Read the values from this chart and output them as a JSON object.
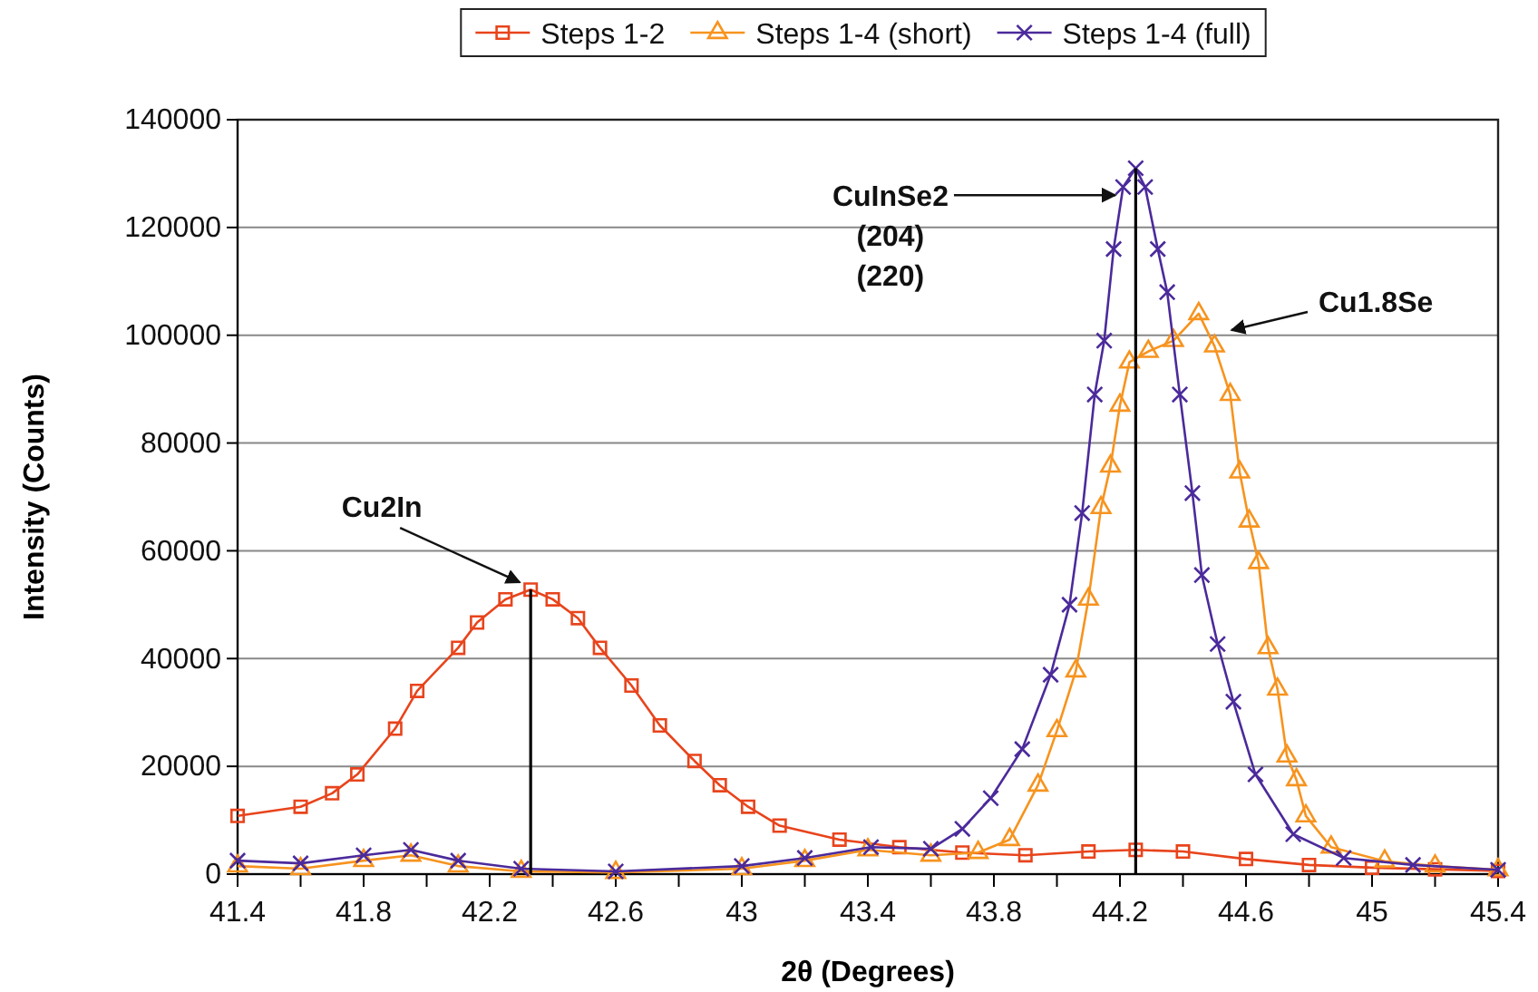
{
  "chart_data": {
    "type": "line",
    "xlabel": "2θ (Degrees)",
    "ylabel": "Intensity (Counts)",
    "xlim": [
      41.4,
      45.4
    ],
    "ylim": [
      0,
      140000
    ],
    "xticks": [
      41.4,
      {
        "value": 41.6,
        "label": null
      },
      41.8,
      {
        "value": 42.0,
        "label": null
      },
      42.2,
      {
        "value": 42.4,
        "label": null
      },
      42.6,
      {
        "value": 42.8,
        "label": null
      },
      43,
      {
        "value": 43.2,
        "label": null
      },
      43.4,
      {
        "value": 43.6,
        "label": null
      },
      43.8,
      {
        "value": 44.0,
        "label": null
      },
      44.2,
      {
        "value": 44.4,
        "label": null
      },
      44.6,
      {
        "value": 44.8,
        "label": null
      },
      45,
      {
        "value": 45.2,
        "label": null
      },
      45.4
    ],
    "yticks": [
      0,
      20000,
      40000,
      60000,
      80000,
      100000,
      120000,
      140000
    ],
    "grid": "y",
    "legend": "top",
    "series": [
      {
        "name": "Steps 1-2",
        "color": "#e8441c",
        "marker": "square",
        "x": [
          41.4,
          41.6,
          41.7,
          41.78,
          41.9,
          41.97,
          42.1,
          42.16,
          42.25,
          42.33,
          42.4,
          42.48,
          42.55,
          42.65,
          42.74,
          42.85,
          42.93,
          43.02,
          43.12,
          43.31,
          43.5,
          43.7,
          43.9,
          44.1,
          44.25,
          44.4,
          44.6,
          44.8,
          45.0,
          45.2,
          45.4
        ],
        "values": [
          10800,
          12500,
          15000,
          18500,
          27000,
          34000,
          42000,
          46700,
          51000,
          52800,
          51000,
          47500,
          42000,
          35000,
          27600,
          21000,
          16500,
          12500,
          9000,
          6400,
          5000,
          4000,
          3500,
          4200,
          4500,
          4200,
          2800,
          1700,
          1200,
          900,
          600
        ]
      },
      {
        "name": "Steps 1-4 (short)",
        "color": "#f7931e",
        "marker": "triangle",
        "x": [
          41.4,
          41.6,
          41.8,
          41.95,
          42.1,
          42.3,
          42.6,
          43.0,
          43.2,
          43.4,
          43.6,
          43.75,
          43.85,
          43.94,
          44.0,
          44.06,
          44.1,
          44.14,
          44.17,
          44.2,
          44.23,
          44.29,
          44.37,
          44.45,
          44.5,
          44.55,
          44.58,
          44.61,
          44.64,
          44.67,
          44.7,
          44.73,
          44.76,
          44.79,
          44.87,
          45.04,
          45.2,
          45.4
        ],
        "values": [
          1500,
          1000,
          2500,
          3500,
          1500,
          500,
          300,
          1000,
          2500,
          4500,
          3500,
          4000,
          6400,
          16500,
          26600,
          37700,
          51000,
          68000,
          75700,
          87000,
          95000,
          97000,
          99000,
          104000,
          98000,
          89000,
          74600,
          65500,
          57800,
          42000,
          34300,
          21900,
          17500,
          10800,
          5000,
          2400,
          1500,
          800
        ]
      },
      {
        "name": "Steps 1-4 (full)",
        "color": "#4b2a9b",
        "marker": "cross",
        "x": [
          41.4,
          41.6,
          41.8,
          41.95,
          42.1,
          42.3,
          42.6,
          43.0,
          43.2,
          43.41,
          43.6,
          43.7,
          43.79,
          43.89,
          43.98,
          44.04,
          44.08,
          44.12,
          44.15,
          44.18,
          44.21,
          44.25,
          44.28,
          44.32,
          44.35,
          44.39,
          44.43,
          44.46,
          44.51,
          44.56,
          44.63,
          44.75,
          44.91,
          45.13,
          45.4
        ],
        "values": [
          2500,
          2000,
          3500,
          4500,
          2500,
          1000,
          500,
          1500,
          3000,
          5000,
          4700,
          8400,
          14100,
          23200,
          37000,
          50000,
          67000,
          89000,
          99000,
          116000,
          127500,
          131000,
          127500,
          116000,
          108000,
          89000,
          70700,
          55500,
          42700,
          32000,
          18500,
          7400,
          3000,
          1700,
          800
        ]
      },
      {
        "color": "#000000",
        "marker": "none",
        "x": [
          42.33,
          42.33
        ],
        "values": [
          0,
          52800
        ]
      },
      {
        "color": "#000000",
        "marker": "none",
        "x": [
          44.25,
          44.25
        ],
        "values": [
          0,
          131000
        ]
      }
    ],
    "annotations": [
      {
        "text": "Cu2In",
        "x": 42.33,
        "y": 52800
      },
      {
        "text": "CuInSe2\n(204)\n(220)",
        "x": 44.22,
        "y": 126000
      },
      "Cu1.8Se"
    ]
  }
}
